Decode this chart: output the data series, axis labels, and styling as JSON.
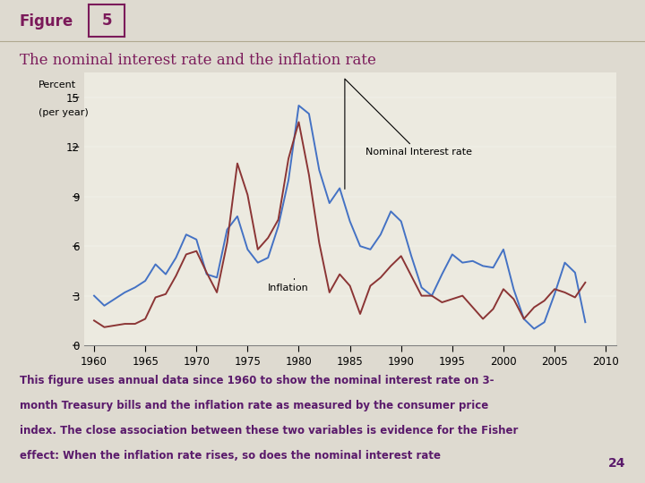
{
  "years_nominal": [
    1960,
    1961,
    1962,
    1963,
    1964,
    1965,
    1966,
    1967,
    1968,
    1969,
    1970,
    1971,
    1972,
    1973,
    1974,
    1975,
    1976,
    1977,
    1978,
    1979,
    1980,
    1981,
    1982,
    1983,
    1984,
    1985,
    1986,
    1987,
    1988,
    1989,
    1990,
    1991,
    1992,
    1993,
    1994,
    1995,
    1996,
    1997,
    1998,
    1999,
    2000,
    2001,
    2002,
    2003,
    2004,
    2005,
    2006,
    2007,
    2008
  ],
  "nominal_interest": [
    3.0,
    2.4,
    2.8,
    3.2,
    3.5,
    3.9,
    4.9,
    4.3,
    5.3,
    6.7,
    6.4,
    4.3,
    4.1,
    7.0,
    7.8,
    5.8,
    5.0,
    5.3,
    7.2,
    10.0,
    14.5,
    14.0,
    10.6,
    8.6,
    9.5,
    7.5,
    6.0,
    5.8,
    6.7,
    8.1,
    7.5,
    5.4,
    3.5,
    3.0,
    4.3,
    5.5,
    5.0,
    5.1,
    4.8,
    4.7,
    5.8,
    3.4,
    1.6,
    1.0,
    1.4,
    3.1,
    5.0,
    4.4,
    1.4
  ],
  "years_inflation": [
    1960,
    1961,
    1962,
    1963,
    1964,
    1965,
    1966,
    1967,
    1968,
    1969,
    1970,
    1971,
    1972,
    1973,
    1974,
    1975,
    1976,
    1977,
    1978,
    1979,
    1980,
    1981,
    1982,
    1983,
    1984,
    1985,
    1986,
    1987,
    1988,
    1989,
    1990,
    1991,
    1992,
    1993,
    1994,
    1995,
    1996,
    1997,
    1998,
    1999,
    2000,
    2001,
    2002,
    2003,
    2004,
    2005,
    2006,
    2007,
    2008
  ],
  "inflation": [
    1.5,
    1.1,
    1.2,
    1.3,
    1.3,
    1.6,
    2.9,
    3.1,
    4.2,
    5.5,
    5.7,
    4.4,
    3.2,
    6.2,
    11.0,
    9.1,
    5.8,
    6.5,
    7.6,
    11.3,
    13.5,
    10.3,
    6.2,
    3.2,
    4.3,
    3.6,
    1.9,
    3.6,
    4.1,
    4.8,
    5.4,
    4.2,
    3.0,
    3.0,
    2.6,
    2.8,
    3.0,
    2.3,
    1.6,
    2.2,
    3.4,
    2.8,
    1.6,
    2.3,
    2.7,
    3.4,
    3.2,
    2.9,
    3.8
  ],
  "bg_color": "#dedad0",
  "plot_bg_color": "#eceae0",
  "nominal_color": "#4472c4",
  "inflation_color": "#8b3535",
  "title": "The nominal interest rate and the inflation rate",
  "title_color": "#7b1a5a",
  "figure_label": "Figure",
  "figure_number": "5",
  "figure_color": "#7b1a5a",
  "ylabel_line1": "Percent",
  "ylabel_line2": "(per year)",
  "yticks": [
    0,
    3,
    6,
    9,
    12,
    15
  ],
  "xticks": [
    1960,
    1965,
    1970,
    1975,
    1980,
    1985,
    1990,
    1995,
    2000,
    2005,
    2010
  ],
  "xlim": [
    1959,
    2011
  ],
  "ylim": [
    0,
    16.5
  ],
  "annotation_nominal": "Nominal Interest rate",
  "annotation_inflation": "Inflation",
  "caption_line1": "This figure uses annual data since 1960 to show the nominal interest rate on 3-",
  "caption_line2": "month Treasury bills and the inflation rate as measured by the consumer price",
  "caption_line3": "index. The close association between these two variables is evidence for the Fisher",
  "caption_line4": "effect: When the inflation rate rises, so does the nominal interest rate",
  "page_number": "24",
  "caption_color": "#5a1a6b"
}
